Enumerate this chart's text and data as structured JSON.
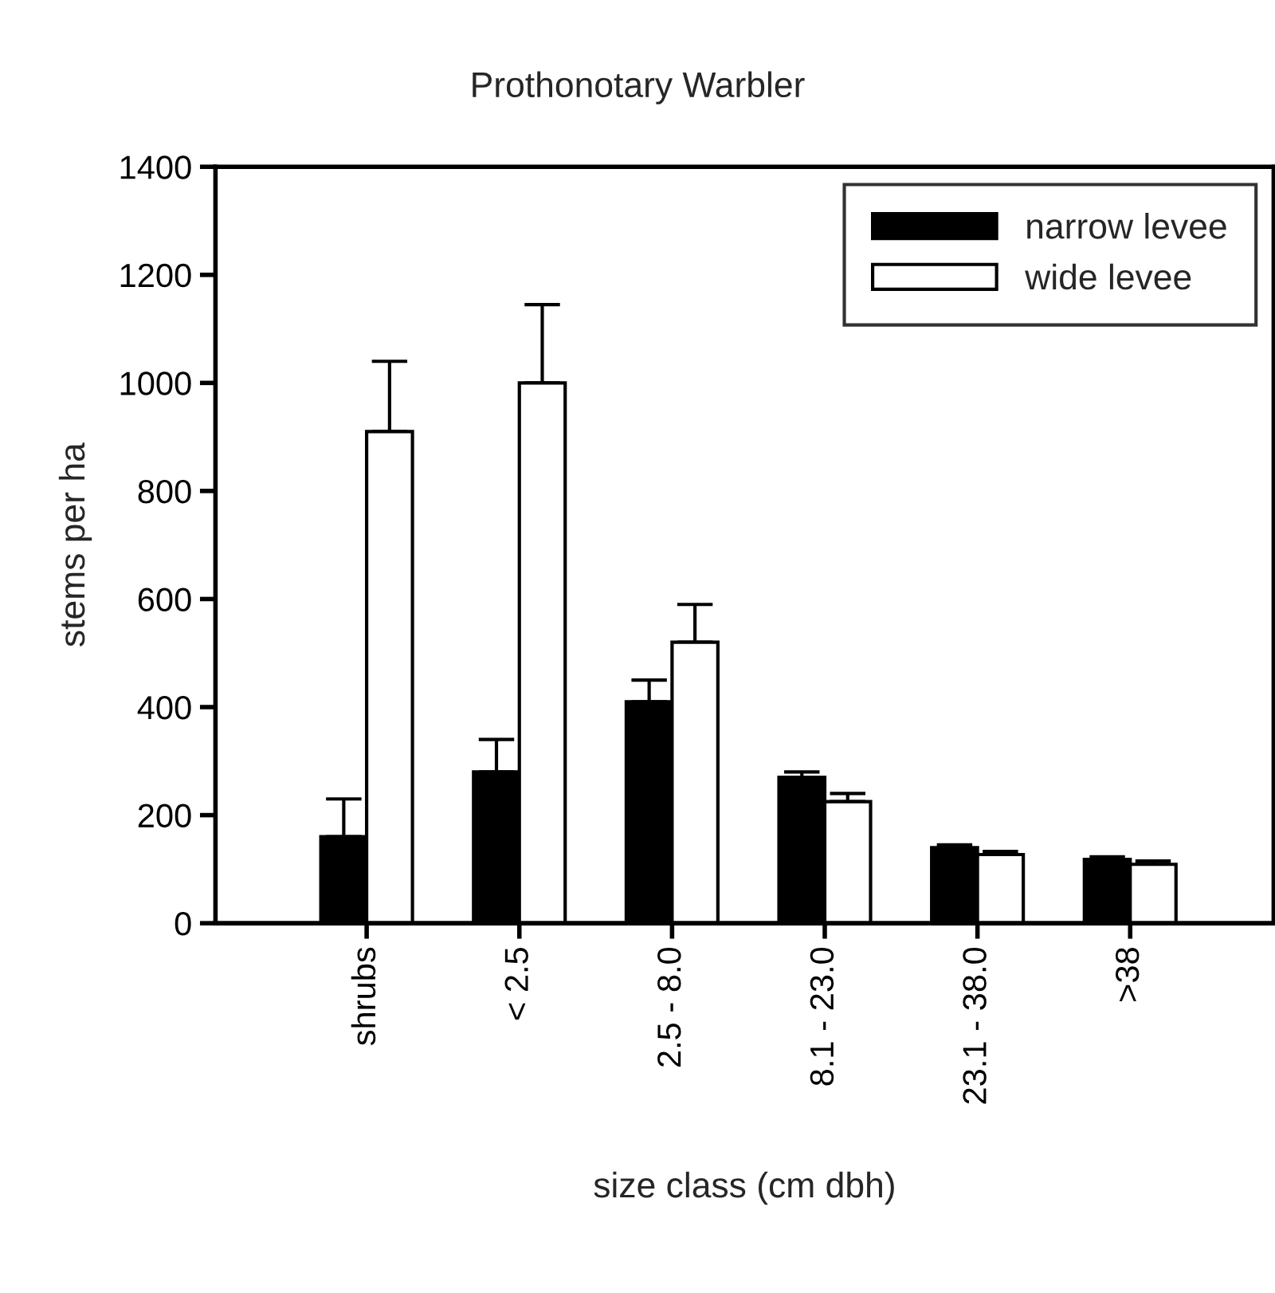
{
  "chart_data": {
    "type": "bar",
    "title": "Prothonotary Warbler",
    "xlabel": "size class (cm dbh)",
    "ylabel": "stems per ha",
    "categories": [
      "shrubs",
      "< 2.5",
      "2.5 - 8.0",
      "8.1 - 23.0",
      "23.1 - 38.0",
      ">38"
    ],
    "series": [
      {
        "name": "narrow levee",
        "color": "#000000",
        "values": [
          160,
          280,
          410,
          270,
          140,
          118
        ],
        "errors": [
          [
            160,
            230
          ],
          [
            280,
            340
          ],
          [
            410,
            450
          ],
          [
            270,
            280
          ],
          [
            140,
            145
          ],
          [
            118,
            123
          ]
        ]
      },
      {
        "name": "wide levee",
        "color": "#ffffff",
        "values": [
          910,
          1000,
          520,
          225,
          127,
          109
        ],
        "errors": [
          [
            910,
            1040
          ],
          [
            1000,
            1145
          ],
          [
            520,
            590
          ],
          [
            225,
            240
          ],
          [
            127,
            133
          ],
          [
            109,
            115
          ]
        ]
      }
    ],
    "ylim": [
      0,
      1400
    ],
    "yticks": [
      0,
      200,
      400,
      600,
      800,
      1000,
      1200,
      1400
    ],
    "grid": false,
    "legend": "top right"
  }
}
